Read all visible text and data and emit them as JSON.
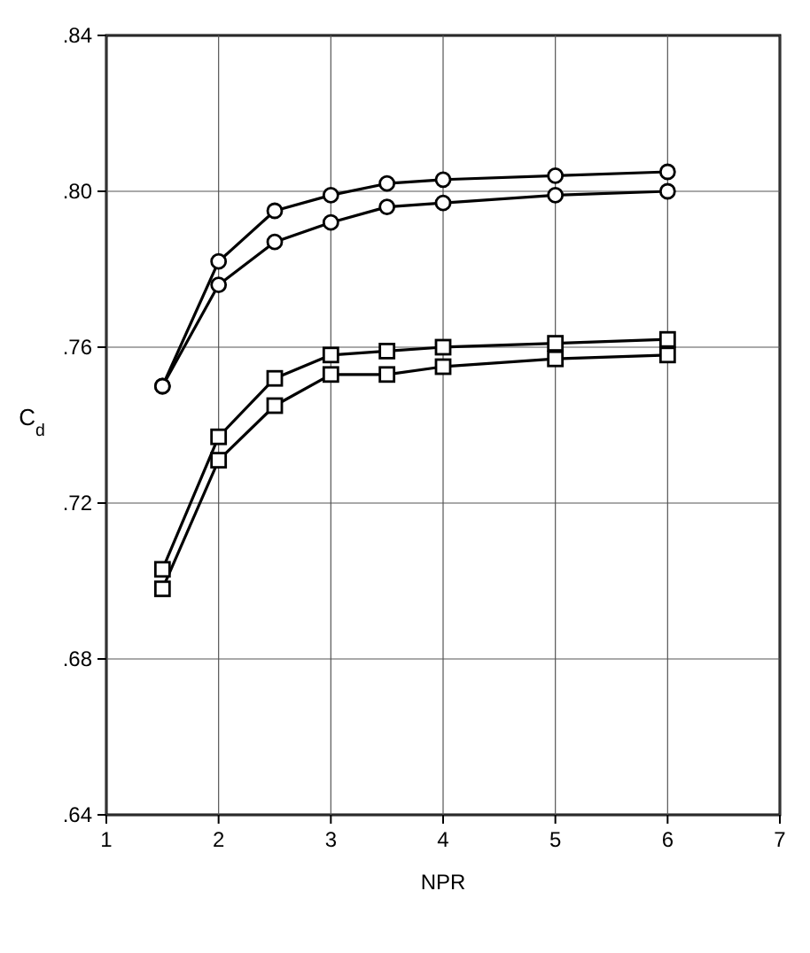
{
  "chart_data": {
    "type": "line",
    "xlabel": "NPR",
    "ylabel": "C$_{d}$",
    "xlim": [
      1,
      7
    ],
    "xticks": [
      1,
      2,
      3,
      4,
      5,
      6,
      7
    ],
    "ylim": [
      0.64,
      0.84
    ],
    "yticks": [
      {
        "value": 0.64,
        "label": ".64"
      },
      {
        "value": 0.68,
        "label": ".68"
      },
      {
        "value": 0.72,
        "label": ".72"
      },
      {
        "value": 0.76,
        "label": ".76"
      },
      {
        "value": 0.8,
        "label": ".80"
      },
      {
        "value": 0.84,
        "label": ".84"
      }
    ],
    "grid": true,
    "line_style": "solid",
    "x": [
      1.5,
      2,
      2.5,
      3,
      3.5,
      4,
      5,
      6
    ],
    "series": [
      {
        "color": "#000000",
        "marker": "circle",
        "values": [
          0.75,
          0.782,
          0.795,
          0.799,
          0.802,
          0.803,
          0.804,
          0.805
        ]
      },
      {
        "color": "#000000",
        "marker": "circle",
        "values": [
          0.75,
          0.776,
          0.787,
          0.792,
          0.796,
          0.797,
          0.799,
          0.8
        ]
      },
      {
        "color": "#000000",
        "marker": "square",
        "values": [
          0.703,
          0.737,
          0.752,
          0.758,
          0.759,
          0.76,
          0.761,
          0.762
        ]
      },
      {
        "color": "#000000",
        "marker": "square",
        "values": [
          0.698,
          0.731,
          0.745,
          0.753,
          0.753,
          0.755,
          0.757,
          0.758
        ]
      }
    ]
  }
}
